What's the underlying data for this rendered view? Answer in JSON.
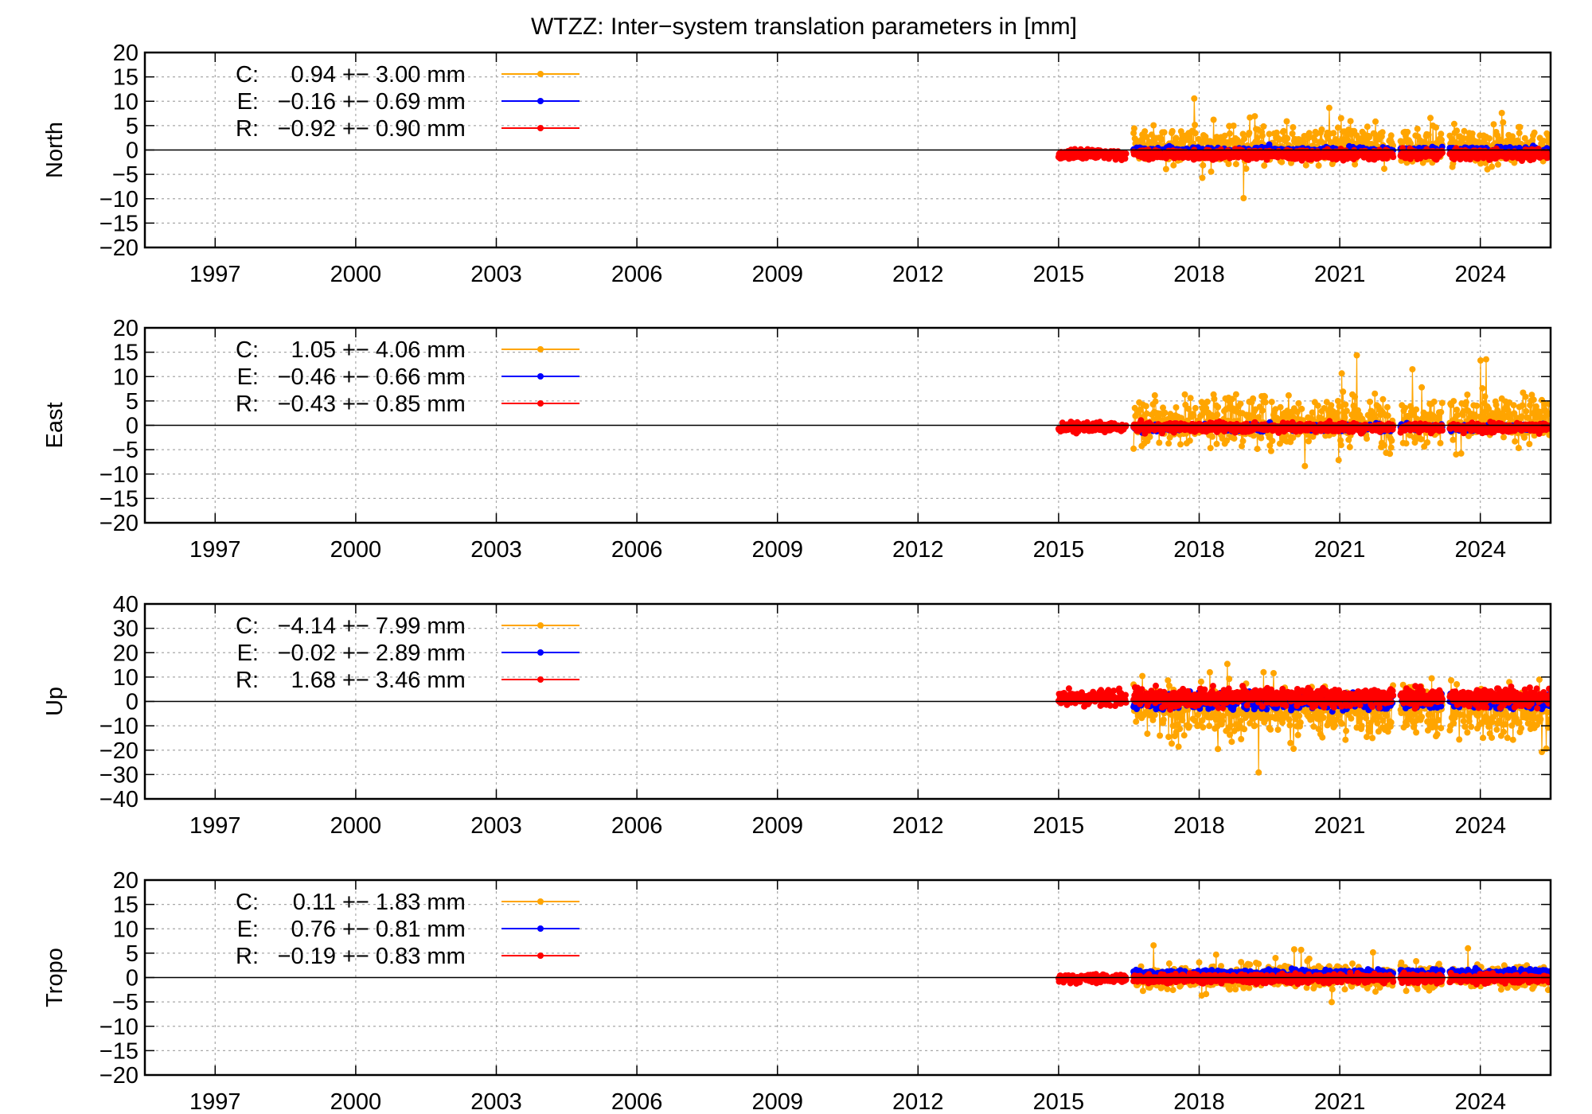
{
  "chart_data": {
    "type": "scatter",
    "title": "WTZZ: Inter−system translation parameters in [mm]",
    "xlim": [
      1995.5,
      2025.5
    ],
    "x_tick_labels": [
      "1997",
      "2000",
      "2003",
      "2006",
      "2009",
      "2012",
      "2015",
      "2018",
      "2021",
      "2024"
    ],
    "x_tick_values": [
      1997,
      2000,
      2003,
      2006,
      2009,
      2012,
      2015,
      2018,
      2021,
      2024
    ],
    "legend_position": "top-left",
    "series_colors": {
      "C": "#ffa500",
      "E": "#0000ff",
      "R": "#ff0000"
    },
    "series_names": [
      "C",
      "E",
      "R"
    ],
    "data_description": "Daily inter-system translation estimates; data span 2015.0 to 2025.5 with gaps near 2016.5, 2022.2 and 2023.3",
    "segments": [
      [
        2015.0,
        2016.45
      ],
      [
        2016.6,
        2022.15
      ],
      [
        2022.3,
        2023.2
      ],
      [
        2023.35,
        2025.5
      ]
    ],
    "panels": [
      {
        "ylabel": "North",
        "ylim": [
          -20,
          20
        ],
        "y_tick_labels": [
          "20",
          "15",
          "10",
          "5",
          "0",
          "−5",
          "−10",
          "−15",
          "−20"
        ],
        "y_tick_values": [
          20,
          15,
          10,
          5,
          0,
          -5,
          -10,
          -15,
          -20
        ],
        "legend": [
          {
            "name": "C",
            "label": "C:",
            "mean_text": "0.94",
            "text": "+− 3.00 mm",
            "mean": 0.94,
            "std": 3.0
          },
          {
            "name": "E",
            "label": "E:",
            "mean_text": "−0.16",
            "text": "+− 0.69 mm",
            "mean": -0.16,
            "std": 0.69
          },
          {
            "name": "R",
            "label": "R:",
            "mean_text": "−0.92",
            "text": "+− 0.90 mm",
            "mean": -0.92,
            "std": 0.9
          }
        ]
      },
      {
        "ylabel": "East",
        "ylim": [
          -20,
          20
        ],
        "y_tick_labels": [
          "20",
          "15",
          "10",
          "5",
          "0",
          "−5",
          "−10",
          "−15",
          "−20"
        ],
        "y_tick_values": [
          20,
          15,
          10,
          5,
          0,
          -5,
          -10,
          -15,
          -20
        ],
        "legend": [
          {
            "name": "C",
            "label": "C:",
            "mean_text": "1.05",
            "text": "+− 4.06 mm",
            "mean": 1.05,
            "std": 4.06
          },
          {
            "name": "E",
            "label": "E:",
            "mean_text": "−0.46",
            "text": "+− 0.66 mm",
            "mean": -0.46,
            "std": 0.66
          },
          {
            "name": "R",
            "label": "R:",
            "mean_text": "−0.43",
            "text": "+− 0.85 mm",
            "mean": -0.43,
            "std": 0.85
          }
        ]
      },
      {
        "ylabel": "Up",
        "ylim": [
          -40,
          40
        ],
        "y_tick_labels": [
          "40",
          "30",
          "20",
          "10",
          "0",
          "−10",
          "−20",
          "−30",
          "−40"
        ],
        "y_tick_values": [
          40,
          30,
          20,
          10,
          0,
          -10,
          -20,
          -30,
          -40
        ],
        "legend": [
          {
            "name": "C",
            "label": "C:",
            "mean_text": "−4.14",
            "text": "+− 7.99 mm",
            "mean": -4.14,
            "std": 7.99
          },
          {
            "name": "E",
            "label": "E:",
            "mean_text": "−0.02",
            "text": "+− 2.89 mm",
            "mean": -0.02,
            "std": 2.89
          },
          {
            "name": "R",
            "label": "R:",
            "mean_text": "1.68",
            "text": "+− 3.46 mm",
            "mean": 1.68,
            "std": 3.46
          }
        ]
      },
      {
        "ylabel": "Tropo",
        "ylim": [
          -20,
          20
        ],
        "y_tick_labels": [
          "20",
          "15",
          "10",
          "5",
          "0",
          "−5",
          "−10",
          "−15",
          "−20"
        ],
        "y_tick_values": [
          20,
          15,
          10,
          5,
          0,
          -5,
          -10,
          -15,
          -20
        ],
        "legend": [
          {
            "name": "C",
            "label": "C:",
            "mean_text": "0.11",
            "text": "+− 1.83 mm",
            "mean": 0.11,
            "std": 1.83
          },
          {
            "name": "E",
            "label": "E:",
            "mean_text": "0.76",
            "text": "+− 0.81 mm",
            "mean": 0.76,
            "std": 0.81
          },
          {
            "name": "R",
            "label": "R:",
            "mean_text": "−0.19",
            "text": "+− 0.83 mm",
            "mean": -0.19,
            "std": 0.83
          }
        ]
      }
    ]
  }
}
